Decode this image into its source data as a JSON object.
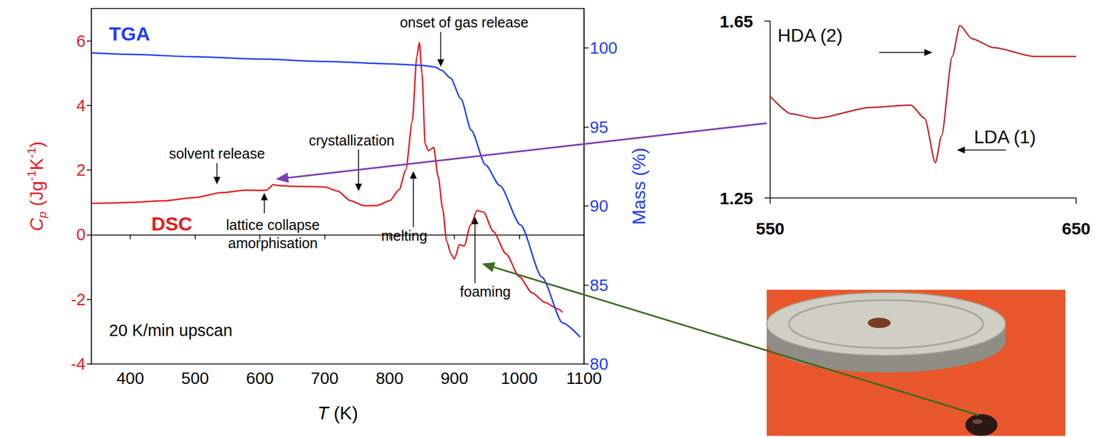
{
  "chart_data": [
    {
      "type": "line",
      "xlabel": [
        {
          "text": "T",
          "style": "italic"
        },
        {
          "text": " (K)",
          "style": "normal"
        }
      ],
      "ylabel": [
        {
          "text": "C",
          "style": "italic"
        },
        {
          "text": "p",
          "style": "sub"
        },
        {
          "text": " (Jg",
          "style": "normal"
        },
        {
          "text": "-1",
          "style": "sup"
        },
        {
          "text": "K",
          "style": "normal"
        },
        {
          "text": "-1",
          "style": "sup"
        },
        {
          "text": ")",
          "style": "normal"
        }
      ],
      "y2label": "Mass (%)",
      "xlim": [
        340,
        1100
      ],
      "xticks": [
        400,
        500,
        600,
        700,
        800,
        900,
        1000,
        1100
      ],
      "ylim": [
        -4,
        7
      ],
      "yticks": [
        -4,
        -2,
        0,
        2,
        4,
        6
      ],
      "y2lim": [
        80,
        102.5
      ],
      "y2ticks": [
        80,
        85,
        90,
        95,
        100
      ],
      "grid": false,
      "series": [
        {
          "name": "DSC",
          "color": "#e8191f",
          "x": [
            340,
            360,
            400,
            450,
            500,
            540,
            580,
            600,
            610,
            615,
            620,
            630,
            650,
            700,
            720,
            740,
            760,
            780,
            800,
            815,
            825,
            835,
            842,
            846,
            850,
            855,
            860,
            868,
            875,
            882,
            888,
            895,
            900,
            908,
            915,
            925,
            935,
            945,
            960,
            980,
            1000,
            1020,
            1040,
            1060,
            1067
          ],
          "values": [
            0.97,
            0.98,
            1.0,
            1.05,
            1.15,
            1.3,
            1.38,
            1.37,
            1.38,
            1.45,
            1.55,
            1.52,
            1.5,
            1.48,
            1.35,
            1.05,
            0.9,
            0.9,
            1.05,
            1.4,
            2.0,
            3.5,
            5.5,
            5.95,
            5.0,
            2.8,
            2.6,
            2.7,
            1.8,
            0.8,
            -0.2,
            -0.6,
            -0.75,
            -0.3,
            -0.35,
            0.3,
            0.75,
            0.7,
            0.1,
            -0.6,
            -1.3,
            -1.8,
            -2.1,
            -2.3,
            -2.4
          ]
        },
        {
          "name": "TGA",
          "color": "#1d3cff",
          "axis": "y2",
          "x": [
            340,
            400,
            500,
            600,
            700,
            800,
            850,
            870,
            880,
            894,
            910,
            926,
            948,
            970,
            1002,
            1035,
            1067,
            1094
          ],
          "values": [
            99.7,
            99.6,
            99.45,
            99.3,
            99.15,
            99.0,
            98.9,
            98.8,
            98.6,
            98.1,
            96.8,
            94.8,
            92.6,
            91.3,
            88.8,
            85.5,
            82.6,
            81.7
          ]
        }
      ],
      "annotations": [
        "solvent release",
        "crystallization",
        "onset of gas release",
        "lattice collapse\namorphisation",
        "melting",
        "foaming",
        "20 K/min upscan"
      ]
    },
    {
      "type": "line",
      "xlim": [
        550,
        650
      ],
      "xticks": [
        550,
        650
      ],
      "ylim": [
        1.25,
        1.65
      ],
      "yticks": [
        1.25,
        1.65
      ],
      "grid": false,
      "series": [
        {
          "color": "#c0282a",
          "x": [
            550,
            557,
            565,
            583,
            596,
            600.5,
            604,
            606,
            609.5,
            612,
            616,
            623,
            636.5,
            650
          ],
          "values": [
            1.48,
            1.44,
            1.43,
            1.455,
            1.46,
            1.43,
            1.33,
            1.39,
            1.57,
            1.64,
            1.61,
            1.59,
            1.57,
            1.57
          ]
        }
      ],
      "annotations": [
        "HDA (2)",
        "LDA (1)"
      ]
    }
  ]
}
